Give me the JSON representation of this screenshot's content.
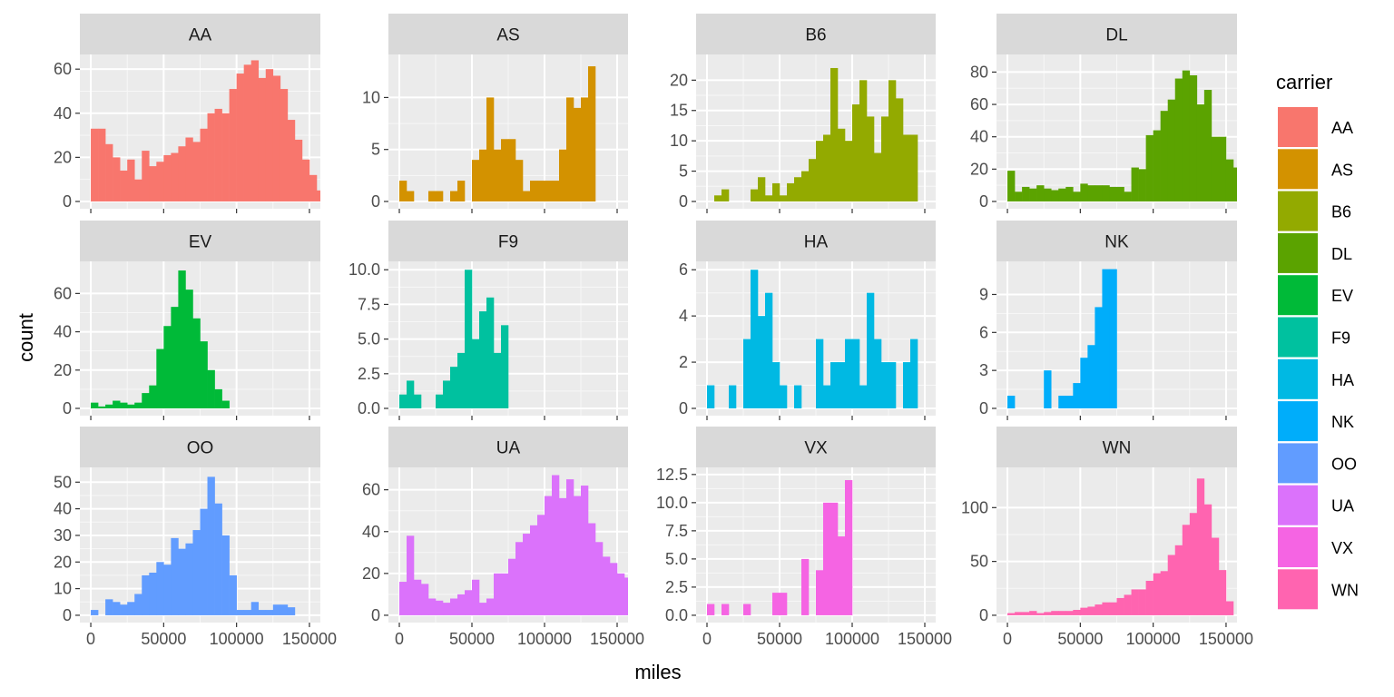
{
  "chart_data": {
    "type": "bar",
    "subtype": "faceted-histogram",
    "xlabel": "miles",
    "ylabel": "count",
    "legend_title": "carrier",
    "legend_position": "right",
    "grid": true,
    "x_range": [
      0,
      150000
    ],
    "x_ticks": [
      0,
      50000,
      100000,
      150000
    ],
    "x_tick_labels": [
      "0",
      "50000",
      "100000",
      "150000"
    ],
    "bin_width": 5000,
    "bins_start": 2500,
    "facets": [
      {
        "name": "AA",
        "color": "#F8766D",
        "yrange": [
          0,
          66
        ],
        "yticks": [
          0,
          20,
          40,
          60
        ],
        "ytick_labels": [
          "0",
          "20",
          "40",
          "60"
        ],
        "values": [
          33,
          33,
          26,
          20,
          14,
          19,
          10,
          23,
          16,
          18,
          21,
          22,
          25,
          29,
          27,
          33,
          40,
          42,
          40,
          51,
          58,
          62,
          64,
          56,
          60,
          57,
          51,
          37,
          28,
          19,
          12,
          5,
          6,
          0,
          0,
          0
        ]
      },
      {
        "name": "AS",
        "color": "#D39200",
        "yrange": [
          0,
          14
        ],
        "yticks": [
          0,
          5,
          10
        ],
        "ytick_labels": [
          "0",
          "5",
          "10"
        ],
        "values": [
          2,
          1,
          0,
          0,
          1,
          1,
          0,
          1,
          2,
          0,
          4,
          5,
          10,
          5,
          6,
          6,
          4,
          1,
          2,
          2,
          2,
          2,
          5,
          10,
          9,
          10,
          13
        ]
      },
      {
        "name": "B6",
        "color": "#93AA00",
        "yrange": [
          0,
          24
        ],
        "yticks": [
          0,
          5,
          10,
          15,
          20
        ],
        "ytick_labels": [
          "0",
          "5",
          "10",
          "15",
          "20"
        ],
        "values": [
          0,
          1,
          2,
          0,
          0,
          0,
          2,
          4,
          1,
          3,
          1,
          3,
          4,
          5,
          7,
          10,
          11,
          22,
          12,
          10,
          16,
          20,
          14,
          8,
          14,
          20,
          17,
          11,
          11
        ]
      },
      {
        "name": "DL",
        "color": "#5BA300",
        "yrange": [
          0,
          90
        ],
        "yticks": [
          0,
          20,
          40,
          60,
          80
        ],
        "ytick_labels": [
          "0",
          "20",
          "40",
          "60",
          "80"
        ],
        "values": [
          19,
          6,
          9,
          8,
          10,
          8,
          7,
          8,
          9,
          6,
          11,
          10,
          10,
          10,
          9,
          9,
          6,
          21,
          20,
          41,
          44,
          56,
          63,
          76,
          81,
          78,
          60,
          69,
          40,
          40,
          26,
          21,
          11,
          12,
          10,
          14,
          11,
          10,
          3
        ]
      },
      {
        "name": "EV",
        "color": "#00BA38",
        "yrange": [
          0,
          76
        ],
        "yticks": [
          0,
          20,
          40,
          60
        ],
        "ytick_labels": [
          "0",
          "20",
          "40",
          "60"
        ],
        "values": [
          3,
          1,
          2,
          4,
          3,
          2,
          3,
          8,
          12,
          31,
          43,
          53,
          72,
          62,
          47,
          35,
          20,
          10,
          4
        ]
      },
      {
        "name": "F9",
        "color": "#00C19F",
        "yrange": [
          0,
          10.5
        ],
        "yticks": [
          0,
          2.5,
          5,
          7.5,
          10
        ],
        "ytick_labels": [
          "0.0",
          "2.5",
          "5.0",
          "7.5",
          "10.0"
        ],
        "values": [
          1,
          2,
          1,
          0,
          0,
          1,
          2,
          3,
          4,
          10,
          5,
          7,
          8,
          4,
          6
        ]
      },
      {
        "name": "HA",
        "color": "#00B9E3",
        "yrange": [
          0,
          6.3
        ],
        "yticks": [
          0,
          2,
          4,
          6
        ],
        "ytick_labels": [
          "0",
          "2",
          "4",
          "6"
        ],
        "values": [
          1,
          0,
          0,
          1,
          0,
          3,
          6,
          4,
          5,
          2,
          1,
          0,
          1,
          0,
          0,
          3,
          1,
          2,
          2,
          3,
          3,
          1,
          5,
          3,
          2,
          2,
          0,
          2,
          3
        ]
      },
      {
        "name": "NK",
        "color": "#00ADFA",
        "yrange": [
          0,
          11.5
        ],
        "yticks": [
          0,
          3,
          6,
          9
        ],
        "ytick_labels": [
          "0",
          "3",
          "6",
          "9"
        ],
        "values": [
          1,
          0,
          0,
          0,
          0,
          3,
          0,
          1,
          1,
          2,
          4,
          5,
          8,
          11,
          11
        ]
      },
      {
        "name": "OO",
        "color": "#619CFF",
        "yrange": [
          0,
          55
        ],
        "yticks": [
          0,
          10,
          20,
          30,
          40,
          50
        ],
        "ytick_labels": [
          "0",
          "10",
          "20",
          "30",
          "40",
          "50"
        ],
        "values": [
          2,
          0,
          6,
          5,
          4,
          5,
          8,
          15,
          16,
          20,
          19,
          29,
          25,
          27,
          32,
          40,
          52,
          42,
          30,
          15,
          2,
          2,
          5,
          2,
          2,
          4,
          4,
          3,
          0,
          0
        ]
      },
      {
        "name": "UA",
        "color": "#DB72FB",
        "yrange": [
          0,
          70
        ],
        "yticks": [
          0,
          20,
          40,
          60
        ],
        "ytick_labels": [
          "0",
          "20",
          "40",
          "60"
        ],
        "values": [
          16,
          38,
          17,
          15,
          8,
          7,
          6,
          8,
          10,
          12,
          17,
          6,
          8,
          20,
          20,
          27,
          35,
          39,
          43,
          48,
          57,
          67,
          56,
          65,
          57,
          62,
          44,
          35,
          28,
          25,
          20,
          18,
          17,
          12,
          9,
          7,
          4,
          2,
          2,
          4,
          4
        ]
      },
      {
        "name": "VX",
        "color": "#F564E3",
        "yrange": [
          0,
          13
        ],
        "yticks": [
          0,
          2.5,
          5,
          7.5,
          10,
          12.5
        ],
        "ytick_labels": [
          "0.0",
          "2.5",
          "5.0",
          "7.5",
          "10.0",
          "12.5"
        ],
        "values": [
          1,
          0,
          1,
          0,
          0,
          1,
          0,
          0,
          0,
          2,
          2,
          0,
          0,
          5,
          0,
          4,
          10,
          10,
          7,
          12
        ]
      },
      {
        "name": "WN",
        "color": "#FF64B0",
        "yrange": [
          0,
          136
        ],
        "yticks": [
          0,
          50,
          100
        ],
        "ytick_labels": [
          "0",
          "50",
          "100"
        ],
        "values": [
          2,
          3,
          3,
          4,
          2,
          3,
          4,
          4,
          4,
          5,
          7,
          8,
          10,
          12,
          12,
          16,
          19,
          24,
          24,
          32,
          39,
          41,
          56,
          65,
          84,
          95,
          127,
          103,
          72,
          42,
          13
        ]
      }
    ]
  }
}
